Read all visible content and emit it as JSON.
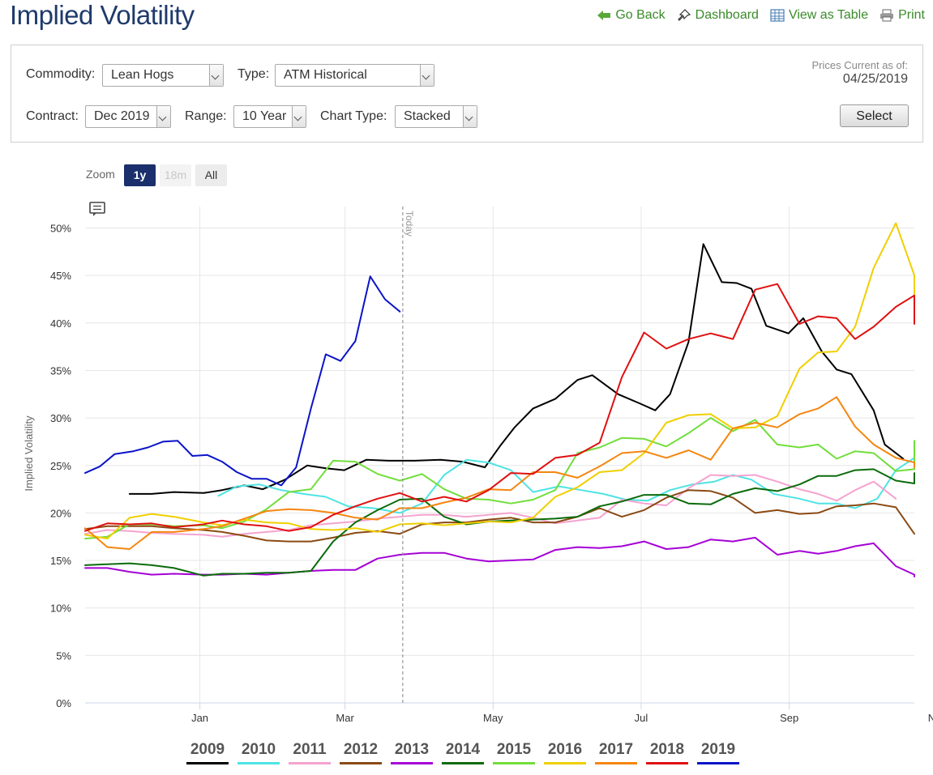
{
  "header": {
    "title": "Implied Volatility",
    "links": [
      {
        "label": "Go Back",
        "icon": "arrow-left-icon"
      },
      {
        "label": "Dashboard",
        "icon": "pin-icon"
      },
      {
        "label": "View as Table",
        "icon": "table-icon"
      },
      {
        "label": "Print",
        "icon": "printer-icon"
      }
    ]
  },
  "controls": {
    "commodity_label": "Commodity:",
    "commodity_value": "Lean Hogs",
    "type_label": "Type:",
    "type_value": "ATM Historical",
    "contract_label": "Contract:",
    "contract_value": "Dec 2019",
    "range_label": "Range:",
    "range_value": "10 Year",
    "charttype_label": "Chart Type:",
    "charttype_value": "Stacked",
    "prices_label": "Prices Current as of:",
    "prices_date": "04/25/2019",
    "select_button": "Select"
  },
  "zoom": {
    "label": "Zoom",
    "options": [
      "1y",
      "18m",
      "All"
    ],
    "selected": "1y"
  },
  "colors": {
    "accent": "#1a2f6b",
    "link": "#3a8b2a"
  },
  "chart_data": {
    "type": "line",
    "ylabel": "Implied Volatility",
    "ylim": [
      0,
      50
    ],
    "y_ticks": [
      "0%",
      "5%",
      "10%",
      "15%",
      "20%",
      "25%",
      "30%",
      "35%",
      "40%",
      "45%",
      "50%"
    ],
    "xlim": [
      -0.85,
      10.35
    ],
    "x_ticks": [
      {
        "label": "Jan",
        "x": 0.7
      },
      {
        "label": "Mar",
        "x": 2.66
      },
      {
        "label": "May",
        "x": 4.66
      },
      {
        "label": "Jul",
        "x": 6.66
      },
      {
        "label": "Sep",
        "x": 8.66
      },
      {
        "label": "Nov",
        "x": 10.66
      }
    ],
    "today_label": "Today",
    "today_x": 3.44,
    "series": [
      {
        "name": "2009",
        "color": "#000000",
        "x": [
          -0.25,
          0.05,
          0.35,
          0.75,
          1.0,
          1.3,
          1.55,
          1.85,
          2.15,
          2.4,
          2.65,
          2.95,
          3.25,
          3.6,
          3.95,
          4.25,
          4.55,
          4.75,
          4.95,
          5.2,
          5.5,
          5.8,
          6.0,
          6.35,
          6.65,
          6.85,
          7.05,
          7.3,
          7.5,
          7.75,
          7.95,
          8.15,
          8.35,
          8.65,
          8.85,
          9.1,
          9.3,
          9.5,
          9.8,
          9.95,
          10.2
        ],
        "y": [
          22,
          22,
          22.2,
          22.1,
          22.4,
          22.9,
          22.5,
          23.5,
          25,
          24.7,
          24.5,
          25.6,
          25.5,
          25.5,
          25.6,
          25.4,
          24.8,
          27,
          29,
          31,
          32,
          34,
          34.5,
          32.5,
          31.5,
          30.8,
          32.5,
          38,
          48.3,
          44.3,
          44.2,
          43.6,
          39.7,
          38.9,
          40.5,
          37,
          35.1,
          34.6,
          30.8,
          27.2,
          25.7
        ]
      },
      {
        "name": "2010",
        "color": "#4fe3e3",
        "x": [
          0.95,
          1.2,
          1.5,
          1.8,
          2.1,
          2.4,
          2.7,
          3.05,
          3.4,
          3.7,
          4.0,
          4.3,
          4.6,
          4.9,
          5.2,
          5.55,
          5.85,
          6.15,
          6.45,
          6.75,
          7.05,
          7.35,
          7.65,
          7.9,
          8.15,
          8.45,
          8.8,
          9.05,
          9.3,
          9.55,
          9.85,
          10.1,
          10.4
        ],
        "y": [
          21.8,
          22.8,
          23,
          22.4,
          22,
          21.7,
          20.7,
          20.5,
          20,
          21,
          24,
          25.6,
          25.3,
          24.5,
          22.2,
          22.8,
          22.4,
          22,
          21.4,
          21.3,
          22.4,
          23,
          23.3,
          24,
          23.5,
          22,
          21.5,
          21,
          21,
          20.5,
          21.5,
          24.5,
          25.8
        ]
      },
      {
        "name": "2011",
        "color": "#f5a3cf",
        "x": [
          -0.85,
          -0.55,
          -0.25,
          0.05,
          0.35,
          0.75,
          1.0,
          1.3,
          1.6,
          1.9,
          2.2,
          2.5,
          2.8,
          3.1,
          3.4,
          3.7,
          4.0,
          4.3,
          4.6,
          4.9,
          5.2,
          5.5,
          5.8,
          6.1,
          6.4,
          6.7,
          7.0,
          7.3,
          7.6,
          7.9,
          8.2,
          8.5,
          8.8,
          9.05,
          9.3,
          9.55,
          9.8,
          10.1
        ],
        "y": [
          17.8,
          18.2,
          18.1,
          17.9,
          17.8,
          17.7,
          17.5,
          17.8,
          18,
          18.2,
          18.7,
          18.9,
          19.1,
          19.4,
          19.6,
          19.8,
          19.8,
          19.6,
          19.8,
          20,
          19.5,
          18.9,
          19.2,
          19.5,
          21.4,
          21,
          20.8,
          22.6,
          24,
          23.9,
          24,
          23.3,
          22.5,
          22,
          21.3,
          22.4,
          23.3,
          21.5
        ]
      },
      {
        "name": "2012",
        "color": "#8b4a14",
        "x": [
          -0.85,
          -0.55,
          -0.25,
          0.05,
          0.35,
          0.75,
          1.0,
          1.3,
          1.6,
          1.9,
          2.2,
          2.5,
          2.8,
          3.1,
          3.4,
          3.7,
          4.0,
          4.3,
          4.6,
          4.9,
          5.2,
          5.5,
          5.8,
          6.1,
          6.4,
          6.7,
          7.0,
          7.3,
          7.6,
          7.9,
          8.2,
          8.5,
          8.8,
          9.05,
          9.3,
          9.55,
          9.8,
          10.1,
          10.35
        ],
        "y": [
          18.3,
          18.6,
          18.6,
          18.6,
          18.4,
          18.2,
          18,
          17.6,
          17.1,
          17,
          17,
          17.4,
          17.9,
          18.1,
          17.8,
          18.8,
          19,
          19,
          19.3,
          19.5,
          19,
          19,
          19.6,
          20.5,
          19.6,
          20.3,
          21.6,
          22.4,
          22.3,
          21.6,
          20,
          20.3,
          19.9,
          20,
          20.7,
          20.8,
          21,
          20.6,
          17.8
        ]
      },
      {
        "name": "2013",
        "color": "#a600d6",
        "x": [
          -0.85,
          -0.55,
          -0.25,
          0.05,
          0.35,
          0.75,
          1.0,
          1.3,
          1.6,
          1.9,
          2.2,
          2.5,
          2.8,
          3.1,
          3.4,
          3.7,
          4.0,
          4.3,
          4.6,
          4.9,
          5.2,
          5.5,
          5.8,
          6.1,
          6.4,
          6.7,
          7.0,
          7.3,
          7.6,
          7.9,
          8.2,
          8.5,
          8.8,
          9.05,
          9.3,
          9.55,
          9.8,
          10.1,
          10.35,
          10.5
        ],
        "y": [
          14.2,
          14.2,
          13.8,
          13.5,
          13.6,
          13.5,
          13.5,
          13.6,
          13.5,
          13.7,
          13.9,
          14,
          14,
          15.2,
          15.6,
          15.8,
          15.8,
          15.2,
          14.9,
          15,
          15.1,
          16.1,
          16.4,
          16.3,
          16.5,
          17,
          16.2,
          16.4,
          17.2,
          17,
          17.4,
          15.6,
          16,
          15.7,
          16,
          16.5,
          16.8,
          14.4,
          13.5,
          13.3
        ]
      },
      {
        "name": "2014",
        "color": "#0b6b0b",
        "x": [
          -0.85,
          -0.55,
          -0.25,
          0.05,
          0.35,
          0.75,
          1.0,
          1.3,
          1.6,
          1.9,
          2.2,
          2.5,
          2.8,
          3.1,
          3.4,
          3.7,
          4.0,
          4.3,
          4.6,
          4.9,
          5.2,
          5.5,
          5.8,
          6.1,
          6.4,
          6.7,
          7.0,
          7.3,
          7.6,
          7.9,
          8.2,
          8.5,
          8.8,
          9.05,
          9.3,
          9.55,
          9.8,
          10.1,
          10.35,
          10.6
        ],
        "y": [
          14.5,
          14.6,
          14.7,
          14.5,
          14.2,
          13.4,
          13.6,
          13.6,
          13.7,
          13.7,
          13.9,
          17,
          19,
          20.3,
          21.4,
          21.5,
          19.6,
          18.8,
          19.1,
          19.2,
          19.3,
          19.4,
          19.6,
          20.7,
          21.2,
          21.9,
          21.9,
          21,
          20.9,
          22,
          22.6,
          22.3,
          23,
          23.9,
          23.9,
          24.5,
          24.6,
          23.4,
          23.1,
          24.2
        ]
      },
      {
        "name": "2015",
        "color": "#72de3b",
        "x": [
          -0.85,
          -0.55,
          -0.25,
          0.05,
          0.35,
          0.75,
          1.0,
          1.3,
          1.6,
          1.9,
          2.2,
          2.5,
          2.8,
          3.1,
          3.4,
          3.7,
          4.0,
          4.3,
          4.6,
          4.9,
          5.2,
          5.5,
          5.8,
          6.1,
          6.4,
          6.7,
          7.0,
          7.3,
          7.6,
          7.9,
          8.2,
          8.5,
          8.8,
          9.05,
          9.3,
          9.55,
          9.8,
          10.1,
          10.35,
          10.6
        ],
        "y": [
          17.3,
          17.5,
          18.8,
          18.8,
          18.6,
          18.7,
          18.4,
          19.1,
          20.4,
          22.2,
          22.5,
          25.5,
          25.4,
          24.1,
          23.4,
          24.1,
          22.5,
          21.5,
          21.4,
          21,
          21.4,
          22.4,
          26.3,
          26.9,
          27.9,
          27.8,
          27,
          28.4,
          30,
          28.6,
          29.8,
          27.2,
          26.9,
          27.2,
          25.7,
          26.5,
          26.3,
          24.4,
          24.6,
          27.6
        ]
      },
      {
        "name": "2016",
        "color": "#f0cf00",
        "x": [
          -0.85,
          -0.55,
          -0.25,
          0.05,
          0.35,
          0.75,
          1.0,
          1.3,
          1.6,
          1.9,
          2.2,
          2.5,
          2.8,
          3.1,
          3.4,
          3.7,
          4.0,
          4.3,
          4.6,
          4.9,
          5.2,
          5.5,
          5.8,
          6.1,
          6.4,
          6.7,
          7.0,
          7.3,
          7.6,
          7.9,
          8.2,
          8.5,
          8.8,
          9.05,
          9.3,
          9.55,
          9.8,
          10.1,
          10.35,
          10.6
        ],
        "y": [
          17.7,
          17.3,
          19.5,
          19.9,
          19.6,
          19,
          18.7,
          19.3,
          19,
          18.9,
          18.3,
          18.2,
          18.4,
          18,
          18.8,
          18.9,
          18.7,
          18.9,
          19.1,
          19,
          19.5,
          21.7,
          22.7,
          24.3,
          24.5,
          26.3,
          29.5,
          30.3,
          30.4,
          28.9,
          29,
          30.2,
          35.2,
          36.9,
          37,
          39.6,
          45.8,
          50.5,
          45,
          41
        ]
      },
      {
        "name": "2017",
        "color": "#f5860f",
        "x": [
          -0.85,
          -0.55,
          -0.25,
          0.05,
          0.35,
          0.75,
          1.0,
          1.3,
          1.6,
          1.9,
          2.2,
          2.5,
          2.8,
          3.1,
          3.4,
          3.7,
          4.0,
          4.3,
          4.6,
          4.9,
          5.2,
          5.5,
          5.8,
          6.1,
          6.4,
          6.7,
          7.0,
          7.3,
          7.6,
          7.9,
          8.2,
          8.5,
          8.8,
          9.05,
          9.3,
          9.55,
          9.8,
          10.1,
          10.35,
          10.6
        ],
        "y": [
          18.4,
          16.4,
          16.2,
          18,
          18,
          18.3,
          18.6,
          19.4,
          20.2,
          20.4,
          20.3,
          20,
          19.5,
          19.3,
          20.5,
          20.5,
          21.1,
          21.6,
          22.5,
          22.4,
          24.3,
          24.3,
          23.7,
          24.9,
          26.3,
          26.5,
          25.8,
          26.6,
          25.6,
          28.9,
          29.5,
          29,
          30.4,
          31,
          32.2,
          29.1,
          27.2,
          25.8,
          25.3,
          24.8
        ]
      },
      {
        "name": "2018",
        "color": "#e01010",
        "x": [
          -0.85,
          -0.55,
          -0.25,
          0.05,
          0.35,
          0.75,
          1.0,
          1.3,
          1.6,
          1.9,
          2.2,
          2.5,
          2.8,
          3.1,
          3.4,
          3.7,
          4.0,
          4.3,
          4.6,
          4.9,
          5.2,
          5.5,
          5.8,
          6.1,
          6.4,
          6.7,
          7.0,
          7.3,
          7.6,
          7.9,
          8.2,
          8.5,
          8.8,
          9.05,
          9.3,
          9.55,
          9.8,
          10.1,
          10.35,
          10.6
        ],
        "y": [
          18.1,
          18.9,
          18.8,
          18.9,
          18.5,
          18.8,
          19.2,
          18.8,
          18.6,
          18.1,
          18.5,
          19.8,
          20.7,
          21.5,
          22.1,
          21.2,
          21.7,
          21.2,
          22.4,
          24.2,
          24.1,
          25.8,
          26.1,
          27.4,
          34.3,
          39,
          37.3,
          38.3,
          38.9,
          38.3,
          43.5,
          44.1,
          39.9,
          40.7,
          40.5,
          38.3,
          39.6,
          41.7,
          42.9,
          39.9
        ]
      },
      {
        "name": "2019",
        "color": "#0a14c8",
        "x": [
          -0.85,
          -0.65,
          -0.45,
          -0.2,
          0.0,
          0.2,
          0.4,
          0.6,
          0.8,
          1.0,
          1.2,
          1.4,
          1.6,
          1.8,
          2.0,
          2.2,
          2.4,
          2.6,
          2.8,
          3.0,
          3.2,
          3.4
        ],
        "y": [
          24.2,
          24.9,
          26.2,
          26.5,
          26.9,
          27.5,
          27.6,
          26,
          26.1,
          25.4,
          24.3,
          23.6,
          23.6,
          22.9,
          24.8,
          31,
          36.7,
          36,
          38.1,
          44.9,
          42.5,
          41.2
        ]
      }
    ]
  }
}
